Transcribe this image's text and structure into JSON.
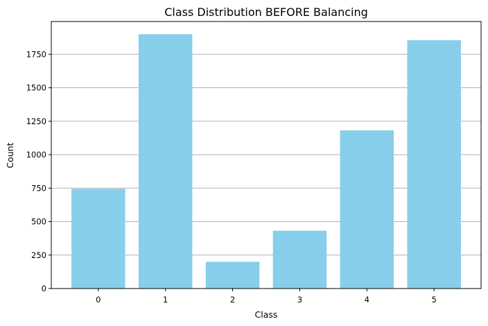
{
  "chart_data": {
    "type": "bar",
    "title": "Class Distribution BEFORE Balancing",
    "xlabel": "Class",
    "ylabel": "Count",
    "categories": [
      "0",
      "1",
      "2",
      "3",
      "4",
      "5"
    ],
    "values": [
      745,
      1900,
      200,
      432,
      1182,
      1855
    ],
    "ylim": [
      0,
      1995
    ],
    "yticks": [
      0,
      250,
      500,
      750,
      1000,
      1250,
      1500,
      1750
    ],
    "bar_color": "#87CEEB",
    "grid": "y-major",
    "grid_color": "#b0b0b0"
  }
}
